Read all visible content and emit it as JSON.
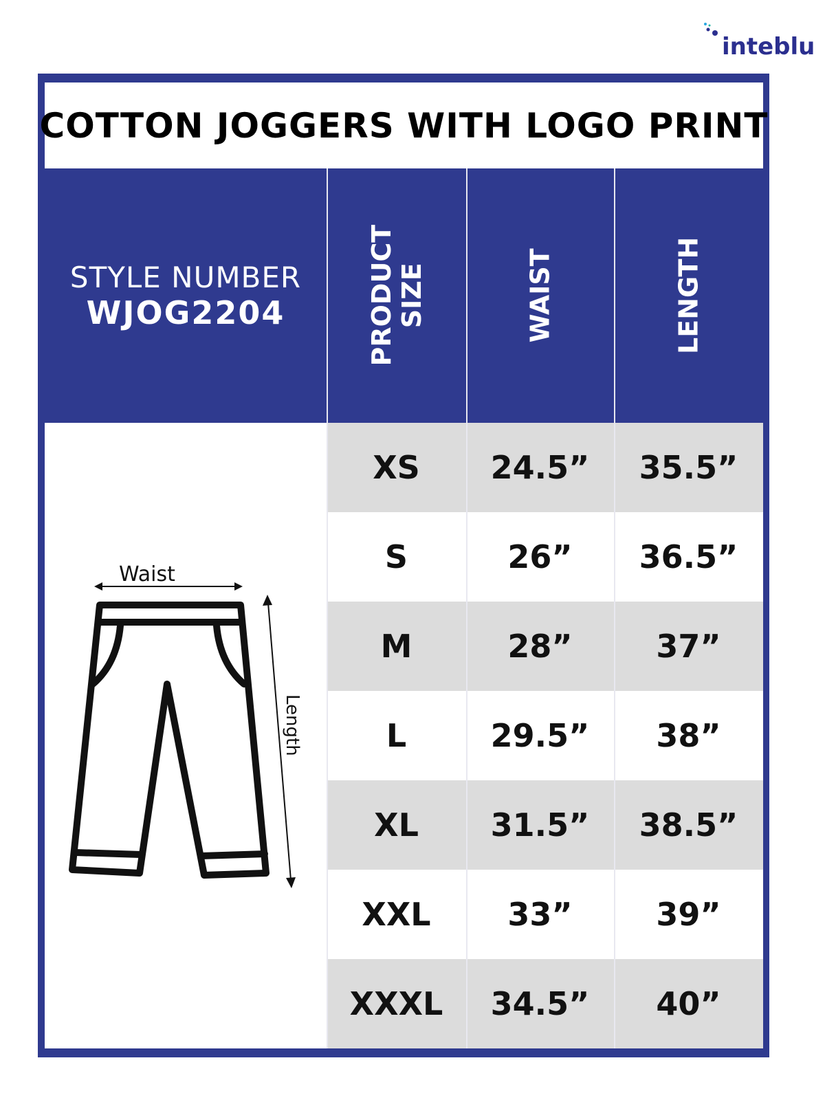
{
  "brand": {
    "logo_text": "inteblu",
    "accent": "#2f3a8f",
    "row_shade": "#dcdcdc"
  },
  "title": "COTTON JOGGERS WITH LOGO PRINT",
  "style": {
    "label": "STYLE NUMBER",
    "number": "WJOG2204"
  },
  "columns": {
    "size": [
      "PRODUCT",
      "SIZE"
    ],
    "waist": "WAIST",
    "length": "LENGTH"
  },
  "diagram": {
    "waist_label": "Waist",
    "length_label": "Length"
  },
  "rows": [
    {
      "size": "XS",
      "waist": "24.5”",
      "length": "35.5”"
    },
    {
      "size": "S",
      "waist": "26”",
      "length": "36.5”"
    },
    {
      "size": "M",
      "waist": "28”",
      "length": "37”"
    },
    {
      "size": "L",
      "waist": "29.5”",
      "length": "38”"
    },
    {
      "size": "XL",
      "waist": "31.5”",
      "length": "38.5”"
    },
    {
      "size": "XXL",
      "waist": "33”",
      "length": "39”"
    },
    {
      "size": "XXXL",
      "waist": "34.5”",
      "length": "40”"
    }
  ]
}
